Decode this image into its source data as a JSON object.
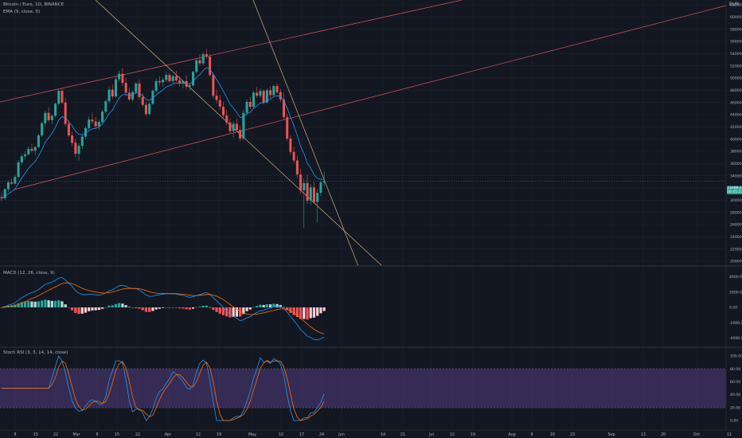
{
  "header": {
    "symbol_line": "Bitcoin / Euro, 1D, BINANCE",
    "ema_line": "EMA (9, close, 0)",
    "currency_label": "EUR"
  },
  "macd_panel": {
    "label": "MACD (12, 26, close, 9)"
  },
  "stoch_panel": {
    "label": "Stoch RSI (3, 3, 14, 14, close)"
  },
  "current_price": {
    "value": "33088.02",
    "sub": "16:45:27"
  },
  "price_axis": {
    "ticks": [
      "62000.00",
      "60000.00",
      "58000.00",
      "56000.00",
      "54000.00",
      "52000.00",
      "50000.00",
      "48000.00",
      "46000.00",
      "44000.00",
      "42000.00",
      "40000.00",
      "38000.00",
      "36000.00",
      "34000.00",
      "32000.00",
      "30000.00",
      "28000.00",
      "26000.00",
      "24000.00",
      "22000.00",
      "20000.00"
    ]
  },
  "macd_axis": {
    "ticks": [
      "4000.00",
      "2000.00",
      "0.00",
      "-2000.00",
      "-4000.00"
    ]
  },
  "stoch_axis": {
    "ticks": [
      "100.00",
      "80.00",
      "60.00",
      "40.00",
      "20.00",
      "0.00"
    ]
  },
  "date_axis": {
    "labels": [
      "8",
      "15",
      "22",
      "Mar",
      "8",
      "15",
      "22",
      "Apr",
      "12",
      "19",
      "May",
      "10",
      "17",
      "24",
      "Jun",
      "14",
      "21",
      "Jul",
      "12",
      "19",
      "Aug",
      "9",
      "16",
      "23",
      "Sep",
      "13",
      "20",
      "Oct",
      "11"
    ]
  },
  "colors": {
    "up": "#26a69a",
    "down": "#ef5350",
    "ema": "#2196f3",
    "trend_red": "#e35757",
    "trend_tan": "#d8b079",
    "macd_line": "#2196f3",
    "signal_line": "#ff6d00",
    "stoch_band": "#7e57c2",
    "stoch_k": "#2196f3",
    "stoch_d": "#ff6d00"
  },
  "chart_data": {
    "type": "candlestick",
    "candles": [
      [
        30500,
        31200,
        29800,
        30300
      ],
      [
        30300,
        32000,
        30000,
        31800
      ],
      [
        31800,
        33200,
        31400,
        32900
      ],
      [
        32900,
        33600,
        32500,
        32700
      ],
      [
        32700,
        34200,
        32600,
        33800
      ],
      [
        33800,
        36500,
        33500,
        36200
      ],
      [
        36200,
        37600,
        35800,
        37200
      ],
      [
        37200,
        38000,
        36700,
        37500
      ],
      [
        37500,
        38800,
        37300,
        38400
      ],
      [
        38400,
        39200,
        37800,
        38100
      ],
      [
        38100,
        38900,
        37400,
        38700
      ],
      [
        38700,
        40900,
        38500,
        40600
      ],
      [
        40600,
        42900,
        40300,
        42600
      ],
      [
        42600,
        44600,
        42200,
        44300
      ],
      [
        44300,
        45200,
        42800,
        43100
      ],
      [
        43100,
        44100,
        42400,
        43800
      ],
      [
        43800,
        46000,
        43600,
        45800
      ],
      [
        45800,
        48200,
        45500,
        47900
      ],
      [
        47900,
        48400,
        45700,
        46000
      ],
      [
        46000,
        46800,
        42100,
        42500
      ],
      [
        42500,
        43100,
        40300,
        40600
      ],
      [
        40600,
        41200,
        38900,
        39400
      ],
      [
        39400,
        40100,
        37100,
        37600
      ],
      [
        37600,
        39300,
        36500,
        38900
      ],
      [
        38900,
        40800,
        38400,
        40400
      ],
      [
        40400,
        42100,
        40000,
        41800
      ],
      [
        41800,
        43700,
        41500,
        43200
      ],
      [
        43200,
        44300,
        42400,
        42900
      ],
      [
        42900,
        43600,
        41600,
        42100
      ],
      [
        42100,
        43200,
        41500,
        42800
      ],
      [
        42800,
        44800,
        42600,
        44500
      ],
      [
        44500,
        46500,
        44200,
        46200
      ],
      [
        46200,
        48500,
        45900,
        48100
      ],
      [
        48100,
        48900,
        46600,
        47000
      ],
      [
        47000,
        50200,
        46700,
        49800
      ],
      [
        49800,
        51200,
        49400,
        50700
      ],
      [
        50700,
        51600,
        48700,
        49200
      ],
      [
        49200,
        50100,
        47100,
        47600
      ],
      [
        47600,
        48400,
        46200,
        46500
      ],
      [
        46500,
        48000,
        46100,
        47700
      ],
      [
        47700,
        49400,
        47400,
        49100
      ],
      [
        49100,
        49800,
        46500,
        46900
      ],
      [
        46900,
        47500,
        45300,
        45600
      ],
      [
        45600,
        46200,
        43800,
        44100
      ],
      [
        44100,
        46100,
        43900,
        45800
      ],
      [
        45800,
        48200,
        45600,
        47900
      ],
      [
        47900,
        49900,
        47600,
        49500
      ],
      [
        49500,
        50300,
        48700,
        49300
      ],
      [
        49300,
        50100,
        48600,
        49700
      ],
      [
        49700,
        51000,
        49300,
        50500
      ],
      [
        50500,
        50900,
        49200,
        49500
      ],
      [
        49500,
        50600,
        49100,
        50300
      ],
      [
        50300,
        51200,
        49300,
        49600
      ],
      [
        49600,
        50300,
        48600,
        49100
      ],
      [
        49100,
        49700,
        48300,
        49500
      ],
      [
        49500,
        50400,
        48200,
        48600
      ],
      [
        48600,
        49200,
        47900,
        48800
      ],
      [
        48800,
        51200,
        48500,
        51000
      ],
      [
        51000,
        53100,
        50700,
        52900
      ],
      [
        52900,
        53900,
        52000,
        52400
      ],
      [
        52400,
        54200,
        52100,
        53900
      ],
      [
        53900,
        54800,
        53100,
        53500
      ],
      [
        53500,
        53900,
        50200,
        50500
      ],
      [
        50500,
        50900,
        46700,
        47100
      ],
      [
        47100,
        48100,
        45800,
        46400
      ],
      [
        46400,
        47200,
        44800,
        45300
      ],
      [
        45300,
        46100,
        43500,
        43900
      ],
      [
        43900,
        44800,
        42300,
        42700
      ],
      [
        42700,
        43400,
        40900,
        41300
      ],
      [
        41300,
        42900,
        40200,
        42500
      ],
      [
        42500,
        43400,
        41100,
        41500
      ],
      [
        41500,
        42200,
        39600,
        40100
      ],
      [
        40100,
        44800,
        39800,
        44300
      ],
      [
        44300,
        46500,
        43900,
        46100
      ],
      [
        46100,
        46900,
        44900,
        45300
      ],
      [
        45300,
        47900,
        45100,
        47600
      ],
      [
        47600,
        48500,
        46800,
        47100
      ],
      [
        47100,
        48300,
        46700,
        47900
      ],
      [
        47900,
        48200,
        45600,
        46000
      ],
      [
        46000,
        48300,
        45800,
        48000
      ],
      [
        48000,
        48600,
        46700,
        47200
      ],
      [
        47200,
        48900,
        46900,
        48700
      ],
      [
        48700,
        49100,
        47400,
        47700
      ],
      [
        47700,
        48200,
        46100,
        46500
      ],
      [
        46500,
        47600,
        43200,
        43600
      ],
      [
        43600,
        44100,
        39700,
        40100
      ],
      [
        40100,
        40600,
        37400,
        37900
      ],
      [
        37900,
        38700,
        36100,
        36500
      ],
      [
        36500,
        37300,
        33600,
        34200
      ],
      [
        34200,
        35100,
        31000,
        31600
      ],
      [
        31600,
        33600,
        25500,
        32800
      ],
      [
        32800,
        34200,
        29400,
        29900
      ],
      [
        29900,
        32600,
        29200,
        32100
      ],
      [
        32100,
        33000,
        29400,
        29700
      ],
      [
        29700,
        31800,
        26400,
        31200
      ],
      [
        31200,
        33200,
        30700,
        32900
      ],
      [
        32900,
        34700,
        32300,
        33088
      ]
    ]
  }
}
